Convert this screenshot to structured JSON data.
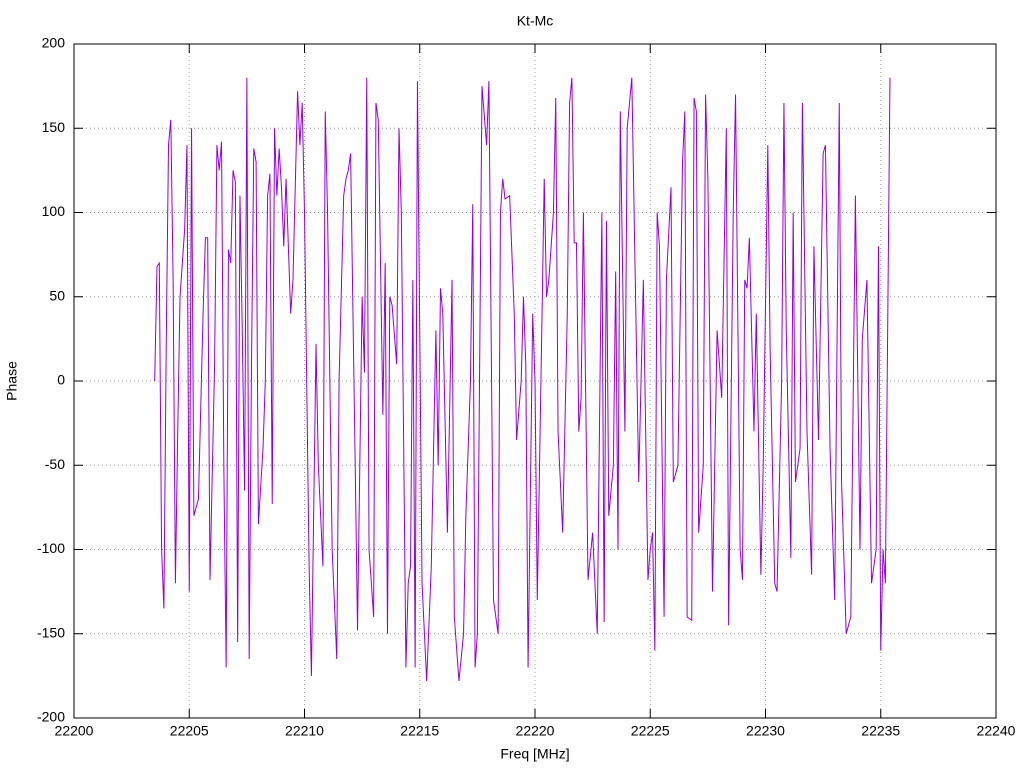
{
  "chart_data": {
    "type": "line",
    "title": "Kt-Mc",
    "x_label": "Freq [MHz]",
    "y_label": "Phase",
    "xlim": [
      22200,
      22240
    ],
    "ylim": [
      -200,
      200
    ],
    "xticks": [
      22200,
      22205,
      22210,
      22215,
      22220,
      22225,
      22230,
      22235,
      22240
    ],
    "yticks": [
      -200,
      -150,
      -100,
      -50,
      0,
      50,
      100,
      150,
      200
    ],
    "grid": true,
    "x": [
      22203.5,
      22203.6,
      22203.7,
      22203.8,
      22203.9,
      22204.0,
      22204.1,
      22204.2,
      22204.3,
      22204.4,
      22204.5,
      22204.6,
      22204.8,
      22204.9,
      22205.0,
      22205.1,
      22205.2,
      22205.4,
      22205.6,
      22205.7,
      22205.8,
      22205.9,
      22206.1,
      22206.2,
      22206.3,
      22206.4,
      22206.5,
      22206.6,
      22206.7,
      22206.8,
      22206.9,
      22207.0,
      22207.1,
      22207.2,
      22207.3,
      22207.4,
      22207.5,
      22207.6,
      22207.7,
      22207.8,
      22207.9,
      22208.0,
      22208.2,
      22208.3,
      22208.4,
      22208.5,
      22208.6,
      22208.7,
      22208.8,
      22208.9,
      22209.0,
      22209.1,
      22209.2,
      22209.4,
      22209.5,
      22209.7,
      22209.8,
      22209.9,
      22210.0,
      22210.2,
      22210.3,
      22210.5,
      22210.6,
      22210.8,
      22210.9,
      22211.0,
      22211.2,
      22211.4,
      22211.5,
      22211.7,
      22211.8,
      22211.9,
      22212.0,
      22212.2,
      22212.3,
      22212.5,
      22212.6,
      22212.7,
      22212.8,
      22213.0,
      22213.1,
      22213.2,
      22213.4,
      22213.5,
      22213.6,
      22213.7,
      22213.8,
      22214.0,
      22214.1,
      22214.2,
      22214.4,
      22214.5,
      22214.6,
      22214.7,
      22214.8,
      22214.9,
      22215.1,
      22215.3,
      22215.5,
      22215.7,
      22215.8,
      22215.9,
      22216.0,
      22216.2,
      22216.4,
      22216.5,
      22216.7,
      22216.9,
      22217.0,
      22217.2,
      22217.3,
      22217.4,
      22217.5,
      22217.7,
      22217.9,
      22218.0,
      22218.2,
      22218.4,
      22218.5,
      22218.6,
      22218.7,
      22218.9,
      22219.1,
      22219.2,
      22219.4,
      22219.5,
      22219.6,
      22219.7,
      22219.9,
      22220.0,
      22220.1,
      22220.3,
      22220.4,
      22220.5,
      22220.6,
      22220.8,
      22220.9,
      22221.0,
      22221.2,
      22221.4,
      22221.5,
      22221.6,
      22221.7,
      22221.8,
      22221.9,
      22222.0,
      22222.1,
      22222.3,
      22222.5,
      22222.7,
      22222.9,
      22223.0,
      22223.1,
      22223.2,
      22223.4,
      22223.5,
      22223.6,
      22223.7,
      22223.9,
      22224.0,
      22224.2,
      22224.5,
      22224.7,
      22224.9,
      22225.0,
      22225.1,
      22225.2,
      22225.3,
      22225.4,
      22225.6,
      22225.7,
      22225.9,
      22226.0,
      22226.2,
      22226.4,
      22226.5,
      22226.6,
      22226.8,
      22226.9,
      22227.0,
      22227.1,
      22227.3,
      22227.4,
      22227.5,
      22227.7,
      22227.9,
      22228.1,
      22228.3,
      22228.4,
      22228.6,
      22228.7,
      22228.9,
      22229.0,
      22229.1,
      22229.2,
      22229.3,
      22229.5,
      22229.6,
      22229.8,
      22229.9,
      22230.1,
      22230.2,
      22230.4,
      22230.5,
      22230.7,
      22230.8,
      22230.9,
      22231.1,
      22231.2,
      22231.3,
      22231.5,
      22231.6,
      22231.8,
      22232.0,
      22232.1,
      22232.3,
      22232.5,
      22232.6,
      22232.8,
      22233.0,
      22233.2,
      22233.3,
      22233.5,
      22233.7,
      22233.9,
      22234.1,
      22234.2,
      22234.4,
      22234.6,
      22234.8,
      22234.9,
      22235.0,
      22235.1,
      22235.2,
      22235.3,
      22235.4
    ],
    "series": [
      {
        "color": "#9400d3",
        "values": [
          0,
          68,
          70,
          -100,
          -135,
          20,
          140,
          155,
          60,
          -120,
          -30,
          50,
          90,
          140,
          -125,
          150,
          -80,
          -70,
          40,
          85,
          85,
          -118,
          10,
          140,
          125,
          142,
          -50,
          -170,
          78,
          70,
          125,
          118,
          -155,
          110,
          30,
          -65,
          180,
          -165,
          10,
          138,
          130,
          -85,
          -40,
          0,
          110,
          123,
          -73,
          150,
          110,
          138,
          115,
          80,
          120,
          40,
          60,
          172,
          140,
          165,
          100,
          -110,
          -175,
          22,
          -50,
          -110,
          160,
          100,
          -100,
          -165,
          0,
          110,
          120,
          125,
          135,
          -50,
          -148,
          50,
          5,
          180,
          -100,
          -140,
          165,
          155,
          -20,
          70,
          -150,
          50,
          45,
          10,
          150,
          100,
          -170,
          -120,
          -110,
          60,
          -170,
          178,
          -120,
          -178,
          -110,
          30,
          -50,
          55,
          40,
          -90,
          60,
          -140,
          -178,
          -150,
          -80,
          0,
          105,
          -170,
          -150,
          175,
          140,
          178,
          -130,
          -150,
          100,
          120,
          108,
          110,
          40,
          -35,
          0,
          50,
          10,
          -170,
          40,
          0,
          -130,
          35,
          120,
          50,
          60,
          100,
          168,
          -30,
          -90,
          40,
          165,
          180,
          82,
          82,
          -30,
          -10,
          100,
          -118,
          -90,
          -150,
          100,
          -143,
          95,
          -80,
          -50,
          65,
          -100,
          160,
          -30,
          150,
          180,
          -60,
          60,
          -118,
          -100,
          -90,
          -160,
          100,
          80,
          -140,
          60,
          115,
          -60,
          -50,
          130,
          160,
          -140,
          -142,
          168,
          160,
          -90,
          -50,
          170,
          120,
          -125,
          30,
          -10,
          150,
          -145,
          100,
          170,
          -100,
          -118,
          60,
          55,
          85,
          -30,
          40,
          -115,
          -50,
          140,
          20,
          -120,
          -125,
          0,
          165,
          30,
          -105,
          100,
          -60,
          -40,
          165,
          -30,
          -115,
          80,
          -35,
          135,
          140,
          -40,
          -130,
          165,
          -60,
          -150,
          -140,
          110,
          -100,
          25,
          60,
          -120,
          -100,
          80,
          -160,
          -100,
          -120,
          30,
          180
        ]
      }
    ]
  }
}
